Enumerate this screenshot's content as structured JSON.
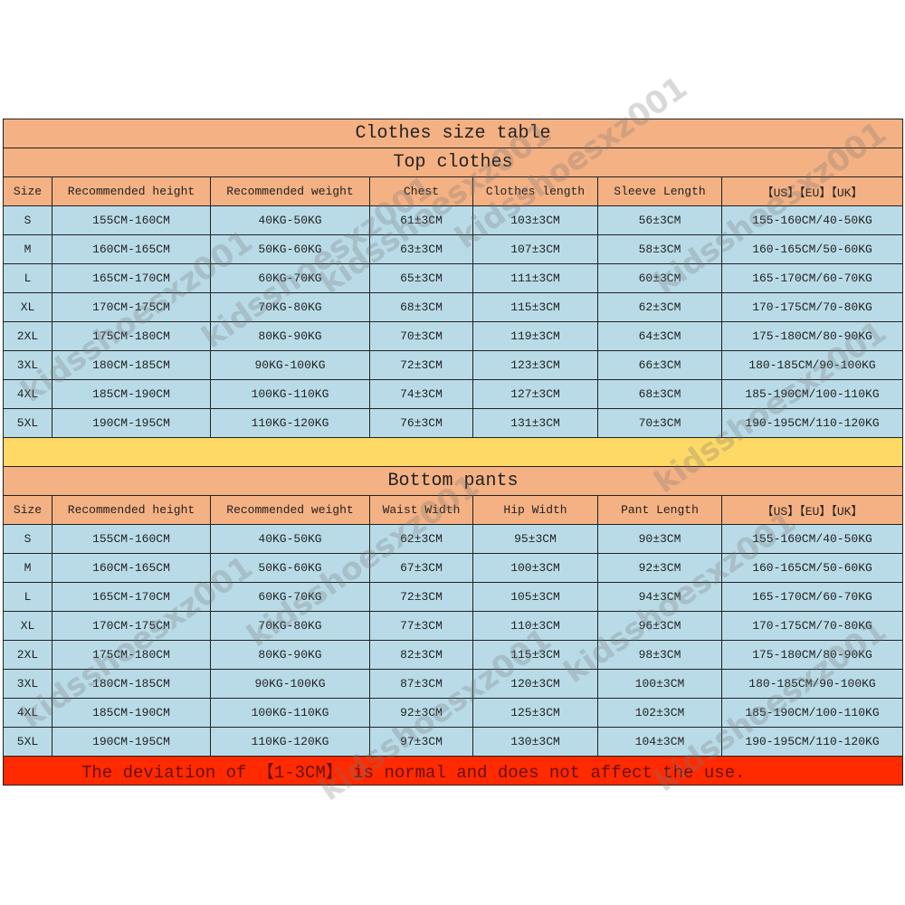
{
  "title": "Clothes size table",
  "top": {
    "heading": "Top clothes",
    "columns": [
      "Size",
      "Recommended height",
      "Recommended weight",
      "Chest",
      "Clothes length",
      "Sleeve Length",
      "【US】【EU】【UK】"
    ],
    "rows": [
      [
        "S",
        "155CM-160CM",
        "40KG-50KG",
        "61±3CM",
        "103±3CM",
        "56±3CM",
        "155-160CM/40-50KG"
      ],
      [
        "M",
        "160CM-165CM",
        "50KG-60KG",
        "63±3CM",
        "107±3CM",
        "58±3CM",
        "160-165CM/50-60KG"
      ],
      [
        "L",
        "165CM-170CM",
        "60KG-70KG",
        "65±3CM",
        "111±3CM",
        "60±3CM",
        "165-170CM/60-70KG"
      ],
      [
        "XL",
        "170CM-175CM",
        "70KG-80KG",
        "68±3CM",
        "115±3CM",
        "62±3CM",
        "170-175CM/70-80KG"
      ],
      [
        "2XL",
        "175CM-180CM",
        "80KG-90KG",
        "70±3CM",
        "119±3CM",
        "64±3CM",
        "175-180CM/80-90KG"
      ],
      [
        "3XL",
        "180CM-185CM",
        "90KG-100KG",
        "72±3CM",
        "123±3CM",
        "66±3CM",
        "180-185CM/90-100KG"
      ],
      [
        "4XL",
        "185CM-190CM",
        "100KG-110KG",
        "74±3CM",
        "127±3CM",
        "68±3CM",
        "185-190CM/100-110KG"
      ],
      [
        "5XL",
        "190CM-195CM",
        "110KG-120KG",
        "76±3CM",
        "131±3CM",
        "70±3CM",
        "190-195CM/110-120KG"
      ]
    ]
  },
  "bottom": {
    "heading": "Bottom pants",
    "columns": [
      "Size",
      "Recommended height",
      "Recommended weight",
      "Waist Width",
      "Hip Width",
      "Pant Length",
      "【US】【EU】【UK】"
    ],
    "rows": [
      [
        "S",
        "155CM-160CM",
        "40KG-50KG",
        "62±3CM",
        "95±3CM",
        "90±3CM",
        "155-160CM/40-50KG"
      ],
      [
        "M",
        "160CM-165CM",
        "50KG-60KG",
        "67±3CM",
        "100±3CM",
        "92±3CM",
        "160-165CM/50-60KG"
      ],
      [
        "L",
        "165CM-170CM",
        "60KG-70KG",
        "72±3CM",
        "105±3CM",
        "94±3CM",
        "165-170CM/60-70KG"
      ],
      [
        "XL",
        "170CM-175CM",
        "70KG-80KG",
        "77±3CM",
        "110±3CM",
        "96±3CM",
        "170-175CM/70-80KG"
      ],
      [
        "2XL",
        "175CM-180CM",
        "80KG-90KG",
        "82±3CM",
        "115±3CM",
        "98±3CM",
        "175-180CM/80-90KG"
      ],
      [
        "3XL",
        "180CM-185CM",
        "90KG-100KG",
        "87±3CM",
        "120±3CM",
        "100±3CM",
        "180-185CM/90-100KG"
      ],
      [
        "4XL",
        "185CM-190CM",
        "100KG-110KG",
        "92±3CM",
        "125±3CM",
        "102±3CM",
        "185-190CM/100-110KG"
      ],
      [
        "5XL",
        "190CM-195CM",
        "110KG-120KG",
        "97±3CM",
        "130±3CM",
        "104±3CM",
        "190-195CM/110-120KG"
      ]
    ]
  },
  "footer_note": "The deviation of 【1-3CM】 is normal and does not affect the use.",
  "watermark": "kidsshoesxz001",
  "colors": {
    "header": "#f4b183",
    "row": "#b9dbe8",
    "separator": "#ffd966",
    "note_bg": "#ff2a00",
    "note_text": "#6b0f0f"
  }
}
